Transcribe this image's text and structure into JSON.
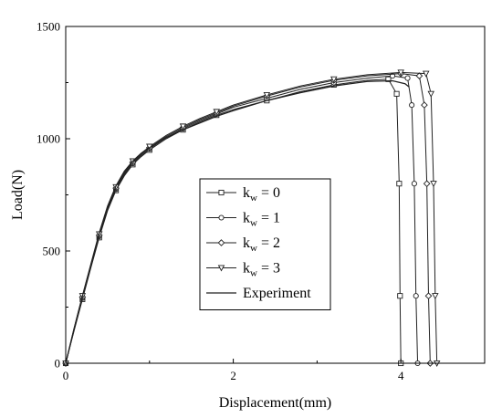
{
  "chart_data": {
    "type": "line",
    "xlabel": "Displacement(mm)",
    "ylabel": "Load(N)",
    "xlim": [
      0,
      5
    ],
    "ylim": [
      0,
      1500
    ],
    "xticks": [
      0,
      2,
      4
    ],
    "yticks": [
      0,
      500,
      1000,
      1500
    ],
    "xtick_labels": [
      "0",
      "2",
      "4"
    ],
    "ytick_labels": [
      "0",
      "500",
      "1000",
      "1500"
    ],
    "grid": false,
    "legend_position": "center",
    "colors": {
      "line": "#222222",
      "marker_fill": "#ffffff"
    },
    "series": [
      {
        "name": "kw = 0",
        "legend_main": "k",
        "legend_sub": "w",
        "legend_rest": " = 0",
        "marker": "square",
        "x": [
          0,
          0.1,
          0.2,
          0.3,
          0.4,
          0.5,
          0.6,
          0.7,
          0.8,
          0.9,
          1.0,
          1.2,
          1.4,
          1.6,
          1.8,
          2.0,
          2.4,
          2.8,
          3.2,
          3.6,
          3.85,
          3.95,
          3.98,
          3.99,
          4.0
        ],
        "y": [
          0,
          145,
          285,
          425,
          560,
          680,
          770,
          835,
          885,
          920,
          950,
          1000,
          1040,
          1075,
          1105,
          1130,
          1170,
          1210,
          1240,
          1260,
          1265,
          1200,
          800,
          300,
          0
        ]
      },
      {
        "name": "kw = 1",
        "legend_main": "k",
        "legend_sub": "w",
        "legend_rest": " = 1",
        "marker": "circle",
        "x": [
          0,
          0.1,
          0.2,
          0.3,
          0.4,
          0.5,
          0.6,
          0.7,
          0.8,
          0.9,
          1.0,
          1.2,
          1.4,
          1.6,
          1.8,
          2.0,
          2.4,
          2.8,
          3.2,
          3.6,
          3.9,
          4.08,
          4.13,
          4.16,
          4.18,
          4.2
        ],
        "y": [
          0,
          150,
          290,
          430,
          565,
          685,
          775,
          840,
          890,
          925,
          955,
          1005,
          1045,
          1080,
          1110,
          1140,
          1180,
          1220,
          1250,
          1270,
          1280,
          1270,
          1150,
          800,
          300,
          0
        ]
      },
      {
        "name": "kw = 2",
        "legend_main": "k",
        "legend_sub": "w",
        "legend_rest": " = 2",
        "marker": "diamond",
        "x": [
          0,
          0.1,
          0.2,
          0.3,
          0.4,
          0.5,
          0.6,
          0.7,
          0.8,
          0.9,
          1.0,
          1.2,
          1.4,
          1.6,
          1.8,
          2.0,
          2.4,
          2.8,
          3.2,
          3.6,
          4.0,
          4.22,
          4.28,
          4.31,
          4.33,
          4.35
        ],
        "y": [
          0,
          150,
          295,
          435,
          570,
          690,
          780,
          845,
          895,
          930,
          960,
          1010,
          1050,
          1085,
          1115,
          1145,
          1190,
          1230,
          1260,
          1280,
          1290,
          1280,
          1150,
          800,
          300,
          0
        ]
      },
      {
        "name": "kw = 3",
        "legend_main": "k",
        "legend_sub": "w",
        "legend_rest": " = 3",
        "marker": "triangle",
        "x": [
          0,
          0.1,
          0.2,
          0.3,
          0.4,
          0.5,
          0.6,
          0.7,
          0.8,
          0.9,
          1.0,
          1.2,
          1.4,
          1.6,
          1.8,
          2.0,
          2.4,
          2.8,
          3.2,
          3.6,
          4.0,
          4.3,
          4.36,
          4.39,
          4.41,
          4.43
        ],
        "y": [
          0,
          155,
          300,
          440,
          575,
          695,
          785,
          850,
          900,
          935,
          965,
          1015,
          1055,
          1090,
          1120,
          1150,
          1195,
          1235,
          1265,
          1285,
          1295,
          1290,
          1200,
          800,
          300,
          0
        ]
      },
      {
        "name": "Experiment",
        "legend_main": "Experiment",
        "legend_sub": "",
        "legend_rest": "",
        "marker": "none",
        "x": [
          0,
          0.1,
          0.2,
          0.3,
          0.4,
          0.5,
          0.6,
          0.7,
          0.8,
          0.9,
          1.0,
          1.2,
          1.4,
          1.6,
          1.8,
          2.0,
          2.4,
          2.8,
          3.2,
          3.6,
          3.9,
          4.05,
          4.1
        ],
        "y": [
          0,
          155,
          300,
          440,
          580,
          700,
          790,
          855,
          900,
          935,
          960,
          1005,
          1040,
          1070,
          1100,
          1125,
          1170,
          1205,
          1235,
          1255,
          1258,
          1245,
          1230
        ]
      }
    ]
  }
}
